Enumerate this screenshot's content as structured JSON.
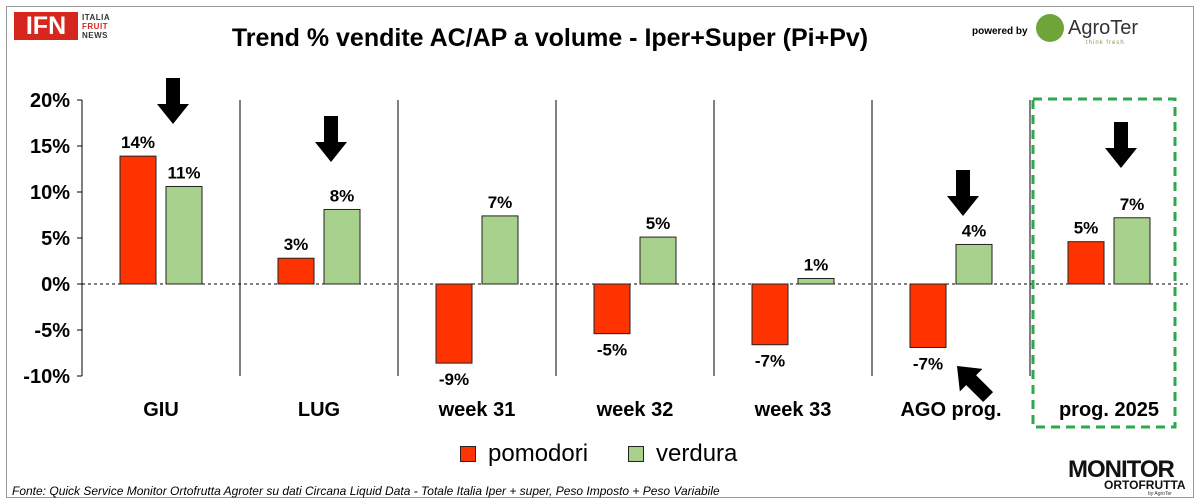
{
  "header": {
    "logo_main": "IFN",
    "logo_lines": [
      "ITALIA",
      "FRUIT",
      "NEWS"
    ],
    "powered_by": "powered by",
    "sponsor_name": "AgroTer",
    "sponsor_tagline": "think fresh"
  },
  "chart_data": {
    "type": "bar",
    "title": "Trend % vendite AC/AP a volume -  Iper+Super (Pi+Pv)",
    "categories": [
      "GIU",
      "LUG",
      "week 31",
      "week 32",
      "week 33",
      "AGO prog.",
      "prog. 2025"
    ],
    "series": [
      {
        "name": "pomodori",
        "color": "#ff3300",
        "values": [
          13.9,
          2.8,
          -8.6,
          -5.4,
          -6.6,
          -6.9,
          4.6
        ],
        "labels": [
          "14%",
          "3%",
          "-9%",
          "-5%",
          "-7%",
          "-7%",
          "5%"
        ]
      },
      {
        "name": "verdura",
        "color": "#a9d18e",
        "values": [
          10.6,
          8.1,
          7.4,
          5.1,
          0.6,
          4.3,
          7.2
        ],
        "labels": [
          "11%",
          "8%",
          "7%",
          "5%",
          "1%",
          "4%",
          "7%"
        ]
      }
    ],
    "ylim": [
      -10,
      20
    ],
    "yticks": [
      20,
      15,
      10,
      5,
      0,
      -5,
      -10
    ],
    "ytick_labels": [
      "20%",
      "15%",
      "10%",
      "5%",
      "0%",
      "-5%",
      "-10%"
    ],
    "xlabel": "",
    "ylabel": "",
    "legend": "bottom-center",
    "grid": false,
    "highlight_category": "prog. 2025",
    "annotations": [
      {
        "category": "GIU",
        "type": "arrow-down"
      },
      {
        "category": "LUG",
        "type": "arrow-down"
      },
      {
        "category": "AGO prog.",
        "type": "arrow-down"
      },
      {
        "category": "AGO prog.",
        "type": "arrow-up-left"
      },
      {
        "category": "prog. 2025",
        "type": "arrow-down"
      }
    ]
  },
  "footer": {
    "source": "Fonte: Quick Service Monitor Ortofrutta Agroter su dati Circana Liquid Data - Totale Italia Iper + super, Peso Imposto + Peso Variabile"
  },
  "brand": {
    "monitor_main": "MONITOR",
    "monitor_sub": "ORTOFRUTTA",
    "monitor_by": "by AgroTer"
  }
}
